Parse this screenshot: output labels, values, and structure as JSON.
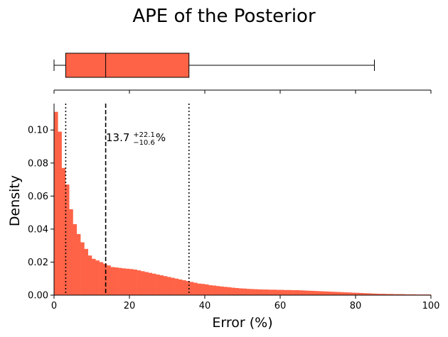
{
  "chart_data": [
    {
      "type": "box",
      "title": "APE of the Posterior",
      "color": "#ff6347",
      "whisker_low": 0,
      "q1": 3.1,
      "median": 13.7,
      "q3": 35.8,
      "whisker_high": 85,
      "xlim": [
        0,
        100
      ],
      "xticks": [
        0,
        20,
        40,
        60,
        80,
        100
      ]
    },
    {
      "type": "bar",
      "subtype": "histogram",
      "color": "#ff6347",
      "xlabel": "Error (%)",
      "ylabel": "Density",
      "xlim": [
        0,
        100
      ],
      "ylim": [
        0,
        0.116
      ],
      "xticks": [
        "0",
        "20",
        "40",
        "60",
        "80",
        "100"
      ],
      "yticks": [
        "0.00",
        "0.02",
        "0.04",
        "0.06",
        "0.08",
        "0.10"
      ],
      "bin_width": 1,
      "values": [
        0.111,
        0.099,
        0.077,
        0.067,
        0.052,
        0.043,
        0.037,
        0.032,
        0.028,
        0.024,
        0.022,
        0.021,
        0.02,
        0.019,
        0.018,
        0.017,
        0.0168,
        0.0165,
        0.0162,
        0.016,
        0.0158,
        0.0155,
        0.015,
        0.0145,
        0.014,
        0.0135,
        0.013,
        0.0125,
        0.012,
        0.0115,
        0.011,
        0.0105,
        0.01,
        0.0095,
        0.009,
        0.0085,
        0.008,
        0.0075,
        0.007,
        0.0068,
        0.0065,
        0.006,
        0.0058,
        0.0055,
        0.0052,
        0.005,
        0.0048,
        0.0045,
        0.0043,
        0.0041,
        0.004,
        0.0038,
        0.0037,
        0.0036,
        0.0035,
        0.0034,
        0.0034,
        0.0033,
        0.0033,
        0.0032,
        0.0032,
        0.0031,
        0.0031,
        0.003,
        0.003,
        0.0029,
        0.0028,
        0.0027,
        0.0026,
        0.0025,
        0.0024,
        0.0023,
        0.0022,
        0.0021,
        0.002,
        0.0019,
        0.0018,
        0.0017,
        0.0016,
        0.0015,
        0.0014,
        0.0013,
        0.0012,
        0.0011,
        0.001,
        0.0009,
        0.0008,
        0.0008,
        0.0007,
        0.0007,
        0.0006,
        0.0006,
        0.0006,
        0.0005,
        0.0005,
        0.0005,
        0.0004,
        0.0004,
        0.0004,
        0.0004
      ],
      "reference_lines": [
        {
          "x": 13.7,
          "style": "dashed"
        },
        {
          "x": 3.1,
          "style": "dotted"
        },
        {
          "x": 35.8,
          "style": "dotted"
        }
      ],
      "annotation": {
        "value": "13.7",
        "upper": "+22.1",
        "lower": "−10.6",
        "unit": "%"
      }
    }
  ]
}
